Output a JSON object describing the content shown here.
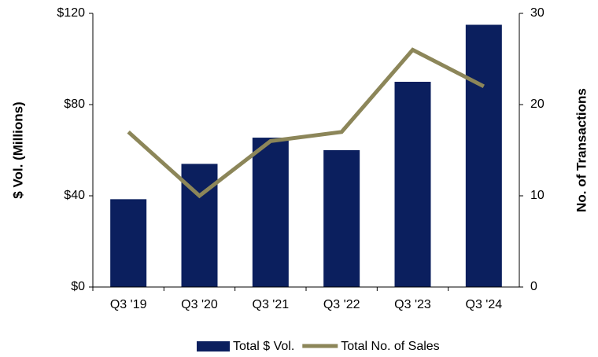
{
  "chart_data": {
    "type": "bar",
    "categories": [
      "Q3 '19",
      "Q3 '20",
      "Q3 '21",
      "Q3 '22",
      "Q3 '23",
      "Q3 '24"
    ],
    "series": [
      {
        "name": "Total $ Vol.",
        "type": "bar",
        "color": "#0b1f5e",
        "values": [
          38.5,
          54,
          65.5,
          60,
          90,
          115
        ]
      },
      {
        "name": "Total No. of Sales",
        "type": "line",
        "axis": "y2",
        "color": "#8c8659",
        "values": [
          17,
          10,
          16,
          17,
          26,
          22
        ]
      }
    ],
    "y_label": "$ Vol. (Millions)",
    "y2_label": "No. of Transactions",
    "ylim": [
      0,
      120
    ],
    "yticks": [
      {
        "value": 0,
        "label": "$0"
      },
      {
        "value": 40,
        "label": "$40"
      },
      {
        "value": 80,
        "label": "$80"
      },
      {
        "value": 120,
        "label": "$120"
      }
    ],
    "y2lim": [
      0,
      30
    ],
    "y2ticks": [
      0,
      10,
      20,
      30
    ],
    "grid": false,
    "legend": "bottom"
  }
}
